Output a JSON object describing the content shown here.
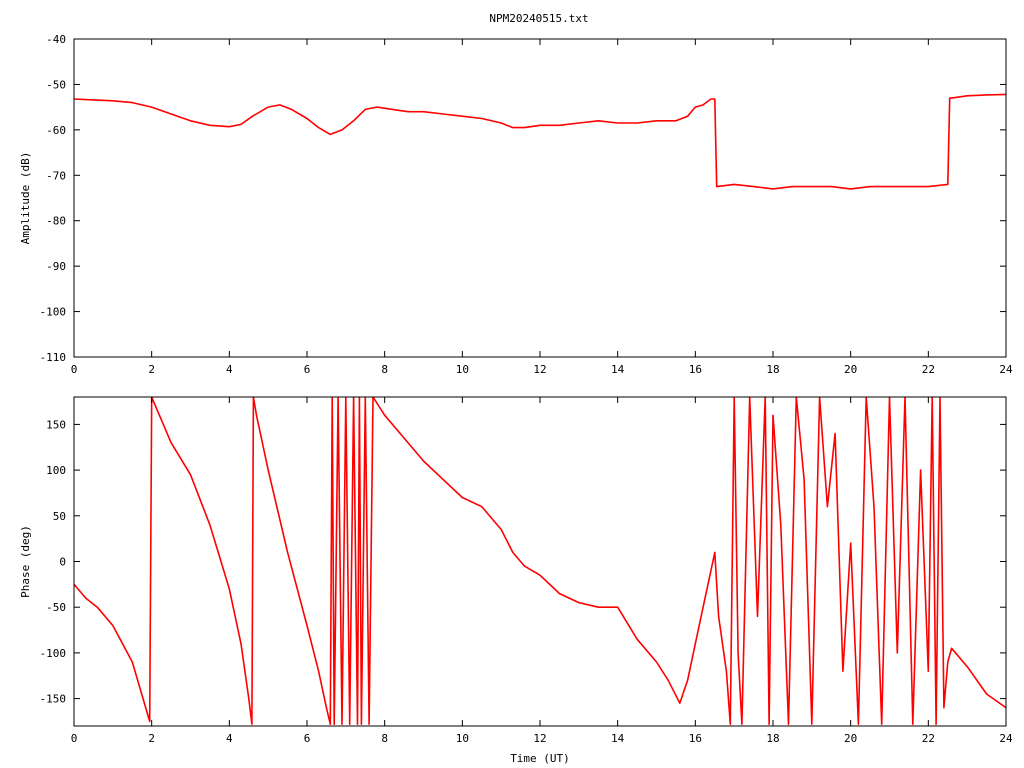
{
  "chart_data": [
    {
      "type": "line",
      "title": "NPM20240515.txt",
      "xlabel": "",
      "ylabel": "Amplitude (dB)",
      "xlim": [
        0,
        24
      ],
      "ylim": [
        -110,
        -40
      ],
      "xticks": [
        "0",
        "2",
        "4",
        "6",
        "8",
        "10",
        "12",
        "14",
        "16",
        "18",
        "20",
        "22",
        "24"
      ],
      "yticks": [
        "-40",
        "-50",
        "-60",
        "-70",
        "-80",
        "-90",
        "-100",
        "-110"
      ],
      "grid": false,
      "color": "#ff0000",
      "series": [
        {
          "x": [
            0,
            0.5,
            1,
            1.5,
            2,
            2.5,
            3,
            3.5,
            4,
            4.3,
            4.6,
            5,
            5.3,
            5.6,
            6,
            6.3,
            6.6,
            6.9,
            7.2,
            7.5,
            7.8,
            8.2,
            8.6,
            9,
            9.5,
            10,
            10.5,
            11,
            11.3,
            11.6,
            12,
            12.5,
            13,
            13.5,
            14,
            14.5,
            15,
            15.5,
            15.8,
            16,
            16.2,
            16.4,
            16.5,
            16.55,
            17,
            17.5,
            18,
            18.5,
            19,
            19.5,
            20,
            20.5,
            21,
            21.5,
            22,
            22.5,
            22.55,
            22.6,
            23,
            23.5,
            24
          ],
          "y": [
            -53.2,
            -53.4,
            -53.6,
            -54,
            -55,
            -56.5,
            -58,
            -59,
            -59.3,
            -58.8,
            -57,
            -55,
            -54.5,
            -55.5,
            -57.5,
            -59.5,
            -61,
            -60,
            -58,
            -55.5,
            -55,
            -55.5,
            -56,
            -56,
            -56.5,
            -57,
            -57.5,
            -58.5,
            -59.5,
            -59.5,
            -59,
            -59,
            -58.5,
            -58,
            -58.5,
            -58.5,
            -58,
            -58,
            -57,
            -55,
            -54.5,
            -53.2,
            -53.2,
            -72.5,
            -72,
            -72.5,
            -73,
            -72.5,
            -72.5,
            -72.5,
            -73,
            -72.5,
            -72.5,
            -72.5,
            -72.5,
            -72,
            -53,
            -53,
            -52.5,
            -52.3,
            -52.2
          ]
        }
      ]
    },
    {
      "type": "line",
      "title": "",
      "xlabel": "Time (UT)",
      "ylabel": "Phase (deg)",
      "xlim": [
        0,
        24
      ],
      "ylim": [
        -180,
        180
      ],
      "xticks": [
        "0",
        "2",
        "4",
        "6",
        "8",
        "10",
        "12",
        "14",
        "16",
        "18",
        "20",
        "22",
        "24"
      ],
      "yticks": [
        "150",
        "100",
        "50",
        "0",
        "-50",
        "-100",
        "-150"
      ],
      "grid": false,
      "color": "#ff0000",
      "series": [
        {
          "x": [
            0,
            0.3,
            0.6,
            1,
            1.5,
            1.95,
            2.0,
            2.05,
            2.5,
            3,
            3.5,
            4,
            4.3,
            4.5,
            4.58,
            4.62,
            4.7,
            5,
            5.5,
            6,
            6.3,
            6.5,
            6.6,
            6.65,
            6.7,
            6.8,
            6.9,
            7.0,
            7.1,
            7.2,
            7.3,
            7.35,
            7.4,
            7.5,
            7.6,
            7.7,
            8,
            8.5,
            9,
            9.5,
            10,
            10.5,
            11,
            11.3,
            11.6,
            12,
            12.5,
            13,
            13.5,
            14,
            14.5,
            15,
            15.3,
            15.6,
            15.8,
            16,
            16.2,
            16.5,
            16.6,
            16.8,
            16.9,
            17,
            17.1,
            17.2,
            17.4,
            17.6,
            17.8,
            17.9,
            18,
            18.2,
            18.4,
            18.6,
            18.8,
            19,
            19.2,
            19.4,
            19.6,
            19.8,
            20,
            20.2,
            20.4,
            20.6,
            20.8,
            21,
            21.2,
            21.4,
            21.6,
            21.8,
            22,
            22.1,
            22.2,
            22.3,
            22.4,
            22.5,
            22.6,
            23,
            23.5,
            24
          ],
          "y": [
            -25,
            -40,
            -50,
            -70,
            -110,
            -175,
            180,
            175,
            130,
            95,
            40,
            -30,
            -90,
            -150,
            -178,
            180,
            160,
            100,
            10,
            -70,
            -120,
            -160,
            -178,
            180,
            -178,
            180,
            -178,
            180,
            -178,
            180,
            -178,
            180,
            -178,
            180,
            -178,
            180,
            160,
            135,
            110,
            90,
            70,
            60,
            35,
            10,
            -5,
            -15,
            -35,
            -45,
            -50,
            -50,
            -85,
            -110,
            -130,
            -155,
            -130,
            -90,
            -50,
            10,
            -60,
            -120,
            -178,
            180,
            -100,
            -178,
            180,
            -60,
            180,
            -178,
            160,
            40,
            -178,
            180,
            90,
            -178,
            180,
            60,
            140,
            -120,
            20,
            -178,
            180,
            60,
            -178,
            180,
            -100,
            180,
            -178,
            100,
            -120,
            180,
            -178,
            180,
            -160,
            -110,
            -95,
            -115,
            -145,
            -160
          ]
        }
      ]
    }
  ]
}
